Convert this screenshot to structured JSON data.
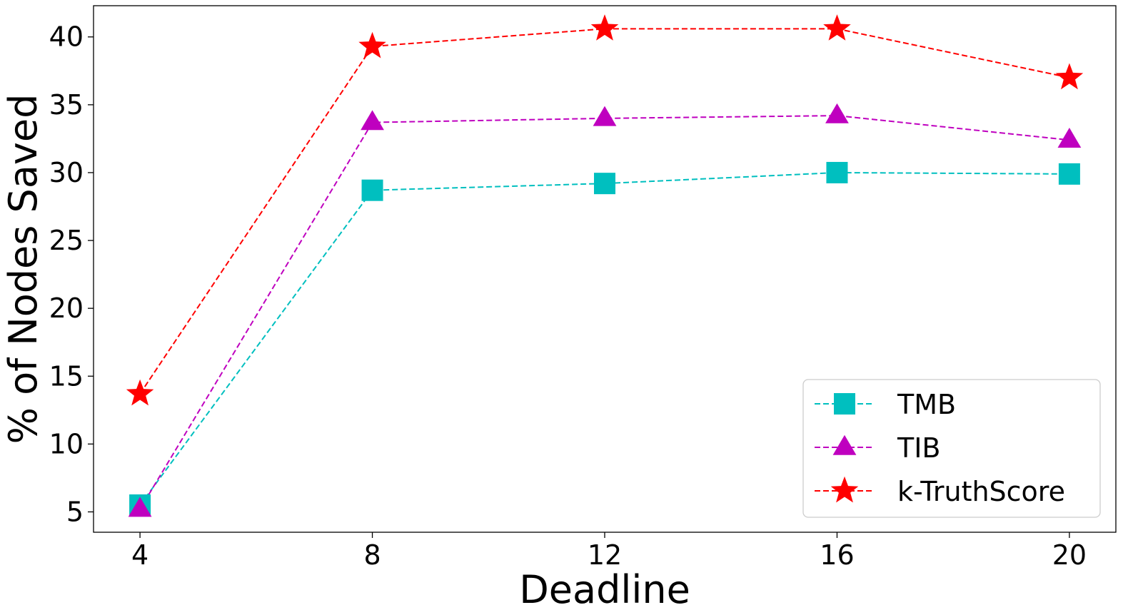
{
  "chart_data": {
    "type": "line",
    "title": "",
    "xlabel": "Deadline",
    "ylabel": "% of Nodes Saved",
    "x": [
      4,
      8,
      12,
      16,
      20
    ],
    "xlim": [
      3.2,
      20.8
    ],
    "ylim": [
      3.5,
      42.3
    ],
    "xticks": [
      4,
      8,
      12,
      16,
      20
    ],
    "yticks": [
      5,
      10,
      15,
      20,
      25,
      30,
      35,
      40
    ],
    "grid": false,
    "legend_position": "lower-right",
    "series": [
      {
        "name": "TMB",
        "values": [
          5.5,
          28.7,
          29.2,
          30.0,
          29.9
        ],
        "color": "#00bfbf",
        "marker": "square",
        "linestyle": "dashed"
      },
      {
        "name": "TIB",
        "values": [
          5.2,
          33.7,
          34.0,
          34.2,
          32.4
        ],
        "color": "#bf00bf",
        "marker": "triangle",
        "linestyle": "dashed"
      },
      {
        "name": "k-TruthScore",
        "values": [
          13.7,
          39.3,
          40.6,
          40.6,
          37.0
        ],
        "color": "#ff0000",
        "marker": "star",
        "linestyle": "dashed"
      }
    ]
  }
}
